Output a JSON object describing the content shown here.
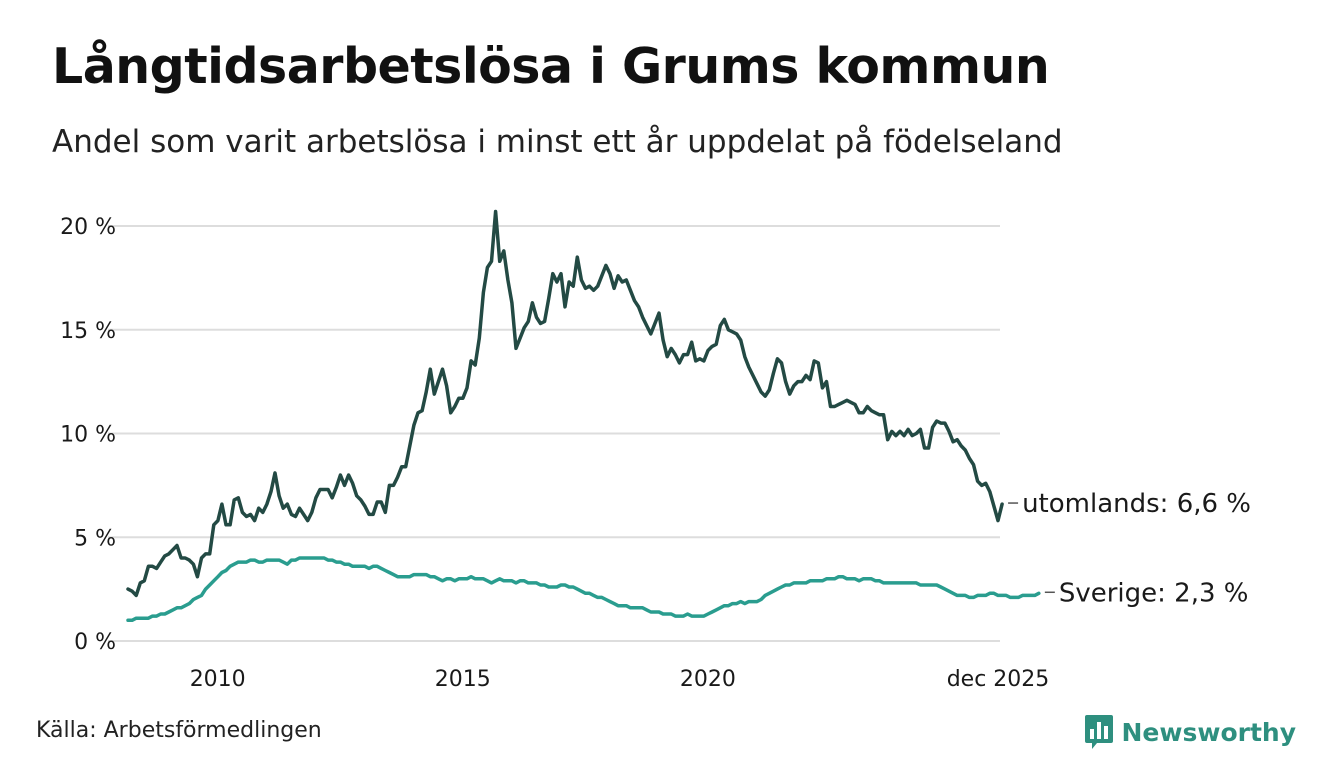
{
  "header": {
    "title": "Långtidsarbetslösa i Grums kommun",
    "subtitle": "Andel som varit arbetslösa i minst ett år uppdelat på födelseland"
  },
  "footer": {
    "source": "Källa: Arbetsförmedlingen",
    "brand": "Newsworthy",
    "brand_icon": "bar-chart-speech-icon"
  },
  "colors": {
    "utomlands": "#234a44",
    "sverige": "#2a9d8f",
    "grid": "#dddddd",
    "brand": "#2e8f7f"
  },
  "chart_data": {
    "type": "line",
    "title": "Långtidsarbetslösa i Grums kommun",
    "subtitle": "Andel som varit arbetslösa i minst ett år uppdelat på födelseland",
    "xlabel": "",
    "ylabel": "",
    "x_start": 2008.17,
    "x_end": 2025.92,
    "x_step_months": 1,
    "xlim": [
      2008.17,
      2025.92
    ],
    "ylim": [
      0,
      20
    ],
    "x_ticks": [
      {
        "value": 2010,
        "label": "2010"
      },
      {
        "value": 2015,
        "label": "2015"
      },
      {
        "value": 2020,
        "label": "2020"
      },
      {
        "value": 2025.92,
        "label": "dec 2025"
      }
    ],
    "y_ticks": [
      {
        "value": 0,
        "label": "0 %"
      },
      {
        "value": 5,
        "label": "5 %"
      },
      {
        "value": 10,
        "label": "10 %"
      },
      {
        "value": 15,
        "label": "15 %"
      },
      {
        "value": 20,
        "label": "20 %"
      }
    ],
    "grid": true,
    "series": [
      {
        "name": "utomlands",
        "end_label": "utomlands: 6,6 %",
        "values": [
          2.5,
          2.4,
          2.2,
          2.8,
          2.9,
          3.6,
          3.6,
          3.5,
          3.8,
          4.1,
          4.2,
          4.4,
          4.6,
          4.0,
          4.0,
          3.9,
          3.7,
          3.1,
          4.0,
          4.2,
          4.2,
          5.6,
          5.8,
          6.6,
          5.6,
          5.6,
          6.8,
          6.9,
          6.2,
          6.0,
          6.1,
          5.8,
          6.4,
          6.2,
          6.6,
          7.2,
          8.1,
          7.0,
          6.4,
          6.6,
          6.1,
          6.0,
          6.4,
          6.1,
          5.8,
          6.2,
          6.9,
          7.3,
          7.3,
          7.3,
          6.9,
          7.4,
          8.0,
          7.5,
          8.0,
          7.6,
          7.0,
          6.8,
          6.5,
          6.1,
          6.1,
          6.7,
          6.7,
          6.2,
          7.5,
          7.5,
          7.9,
          8.4,
          8.4,
          9.4,
          10.4,
          11.0,
          11.1,
          12.0,
          13.1,
          11.9,
          12.5,
          13.1,
          12.3,
          11.0,
          11.3,
          11.7,
          11.7,
          12.2,
          13.5,
          13.3,
          14.6,
          16.8,
          18.0,
          18.3,
          20.7,
          18.3,
          18.8,
          17.4,
          16.3,
          14.1,
          14.6,
          15.1,
          15.4,
          16.3,
          15.6,
          15.3,
          15.4,
          16.5,
          17.7,
          17.3,
          17.7,
          16.1,
          17.3,
          17.1,
          18.5,
          17.4,
          17.0,
          17.1,
          16.9,
          17.1,
          17.6,
          18.1,
          17.7,
          17.0,
          17.6,
          17.3,
          17.4,
          16.9,
          16.4,
          16.1,
          15.6,
          15.2,
          14.8,
          15.3,
          15.8,
          14.5,
          13.7,
          14.1,
          13.8,
          13.4,
          13.8,
          13.8,
          14.4,
          13.5,
          13.6,
          13.5,
          14.0,
          14.2,
          14.3,
          15.2,
          15.5,
          15.0,
          14.9,
          14.8,
          14.5,
          13.7,
          13.2,
          12.8,
          12.4,
          12.0,
          11.8,
          12.1,
          12.9,
          13.6,
          13.4,
          12.5,
          11.9,
          12.3,
          12.5,
          12.5,
          12.8,
          12.6,
          13.5,
          13.4,
          12.2,
          12.5,
          11.3,
          11.3,
          11.4,
          11.5,
          11.6,
          11.5,
          11.4,
          11.0,
          11.0,
          11.3,
          11.1,
          11.0,
          10.9,
          10.9,
          9.7,
          10.1,
          9.9,
          10.1,
          9.9,
          10.2,
          9.9,
          10.0,
          10.2,
          9.3,
          9.3,
          10.3,
          10.6,
          10.5,
          10.5,
          10.1,
          9.6,
          9.7,
          9.4,
          9.2,
          8.8,
          8.5,
          7.7,
          7.5,
          7.6,
          7.2,
          6.5,
          5.8,
          6.6
        ]
      },
      {
        "name": "Sverige",
        "end_label": "Sverige: 2,3 %",
        "values": [
          1.0,
          1.0,
          1.1,
          1.1,
          1.1,
          1.1,
          1.2,
          1.2,
          1.3,
          1.3,
          1.4,
          1.5,
          1.6,
          1.6,
          1.7,
          1.8,
          2.0,
          2.1,
          2.2,
          2.5,
          2.7,
          2.9,
          3.1,
          3.3,
          3.4,
          3.6,
          3.7,
          3.8,
          3.8,
          3.8,
          3.9,
          3.9,
          3.8,
          3.8,
          3.9,
          3.9,
          3.9,
          3.9,
          3.8,
          3.7,
          3.9,
          3.9,
          4.0,
          4.0,
          4.0,
          4.0,
          4.0,
          4.0,
          4.0,
          3.9,
          3.9,
          3.8,
          3.8,
          3.7,
          3.7,
          3.6,
          3.6,
          3.6,
          3.6,
          3.5,
          3.6,
          3.6,
          3.5,
          3.4,
          3.3,
          3.2,
          3.1,
          3.1,
          3.1,
          3.1,
          3.2,
          3.2,
          3.2,
          3.2,
          3.1,
          3.1,
          3.0,
          2.9,
          3.0,
          3.0,
          2.9,
          3.0,
          3.0,
          3.0,
          3.1,
          3.0,
          3.0,
          3.0,
          2.9,
          2.8,
          2.9,
          3.0,
          2.9,
          2.9,
          2.9,
          2.8,
          2.9,
          2.9,
          2.8,
          2.8,
          2.8,
          2.7,
          2.7,
          2.6,
          2.6,
          2.6,
          2.7,
          2.7,
          2.6,
          2.6,
          2.5,
          2.4,
          2.3,
          2.3,
          2.2,
          2.1,
          2.1,
          2.0,
          1.9,
          1.8,
          1.7,
          1.7,
          1.7,
          1.6,
          1.6,
          1.6,
          1.6,
          1.5,
          1.4,
          1.4,
          1.4,
          1.3,
          1.3,
          1.3,
          1.2,
          1.2,
          1.2,
          1.3,
          1.2,
          1.2,
          1.2,
          1.2,
          1.3,
          1.4,
          1.5,
          1.6,
          1.7,
          1.7,
          1.8,
          1.8,
          1.9,
          1.8,
          1.9,
          1.9,
          1.9,
          2.0,
          2.2,
          2.3,
          2.4,
          2.5,
          2.6,
          2.7,
          2.7,
          2.8,
          2.8,
          2.8,
          2.8,
          2.9,
          2.9,
          2.9,
          2.9,
          3.0,
          3.0,
          3.0,
          3.1,
          3.1,
          3.0,
          3.0,
          3.0,
          2.9,
          3.0,
          3.0,
          3.0,
          2.9,
          2.9,
          2.8,
          2.8,
          2.8,
          2.8,
          2.8,
          2.8,
          2.8,
          2.8,
          2.8,
          2.7,
          2.7,
          2.7,
          2.7,
          2.7,
          2.6,
          2.5,
          2.4,
          2.3,
          2.2,
          2.2,
          2.2,
          2.1,
          2.1,
          2.2,
          2.2,
          2.2,
          2.3,
          2.3,
          2.2,
          2.2,
          2.2,
          2.1,
          2.1,
          2.1,
          2.2,
          2.2,
          2.2,
          2.2,
          2.3
        ]
      }
    ]
  }
}
